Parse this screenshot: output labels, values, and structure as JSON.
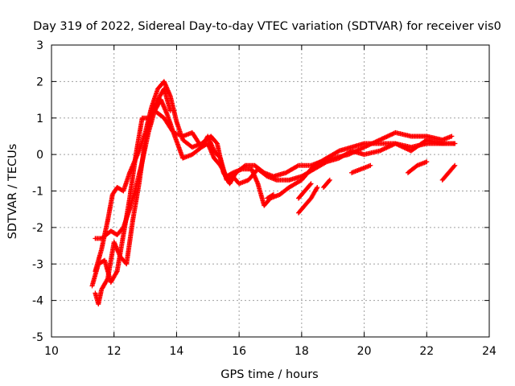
{
  "chart_data": {
    "type": "scatter",
    "title": "Day 319 of 2022, Sidereal Day-to-day VTEC variation (SDTVAR) for receiver vis0",
    "xlabel": "GPS time / hours",
    "ylabel": "SDTVAR / TECUs",
    "xlim": [
      10,
      24
    ],
    "ylim": [
      -5,
      3
    ],
    "xticks": [
      10,
      12,
      14,
      16,
      18,
      20,
      22,
      24
    ],
    "yticks": [
      -5,
      -4,
      -3,
      -2,
      -1,
      0,
      1,
      2,
      3
    ],
    "xtick_labels": [
      "10",
      "12",
      "14",
      "16",
      "18",
      "20",
      "22",
      "24"
    ],
    "ytick_labels": [
      "-5",
      "-4",
      "-3",
      "-2",
      "-1",
      "0",
      "1",
      "2",
      "3"
    ],
    "grid": true,
    "marker": "+",
    "marker_color": "#ff0000",
    "series": [
      {
        "name": "trace-1",
        "points": [
          [
            11.4,
            -3.2
          ],
          [
            11.6,
            -2.6
          ],
          [
            11.8,
            -1.8
          ],
          [
            11.95,
            -1.1
          ],
          [
            12.1,
            -0.9
          ],
          [
            12.3,
            -1.0
          ],
          [
            12.5,
            -0.5
          ],
          [
            12.8,
            0.1
          ],
          [
            13.0,
            0.6
          ],
          [
            13.2,
            1.3
          ],
          [
            13.4,
            1.8
          ],
          [
            13.6,
            2.0
          ],
          [
            13.8,
            1.6
          ],
          [
            14.0,
            0.9
          ],
          [
            14.2,
            0.4
          ],
          [
            14.5,
            0.2
          ],
          [
            14.8,
            0.3
          ],
          [
            15.1,
            0.5
          ],
          [
            15.3,
            0.3
          ],
          [
            15.5,
            -0.5
          ],
          [
            15.7,
            -0.8
          ],
          [
            15.9,
            -0.5
          ],
          [
            16.2,
            -0.3
          ],
          [
            16.5,
            -0.3
          ],
          [
            16.8,
            -0.5
          ],
          [
            17.1,
            -0.6
          ],
          [
            17.5,
            -0.5
          ],
          [
            17.9,
            -0.3
          ],
          [
            18.3,
            -0.3
          ],
          [
            18.6,
            -0.2
          ],
          [
            19.0,
            -0.1
          ],
          [
            19.5,
            0.0
          ],
          [
            20.0,
            0.2
          ],
          [
            20.5,
            0.4
          ],
          [
            21.0,
            0.6
          ],
          [
            21.5,
            0.5
          ],
          [
            22.0,
            0.5
          ],
          [
            22.5,
            0.4
          ],
          [
            22.8,
            0.5
          ]
        ]
      },
      {
        "name": "trace-2",
        "points": [
          [
            11.4,
            -2.3
          ],
          [
            11.6,
            -2.3
          ],
          [
            11.9,
            -2.1
          ],
          [
            12.1,
            -2.2
          ],
          [
            12.3,
            -2.0
          ],
          [
            12.5,
            -1.5
          ],
          [
            12.7,
            -0.9
          ],
          [
            12.9,
            -0.2
          ],
          [
            13.1,
            0.6
          ],
          [
            13.3,
            1.2
          ],
          [
            13.5,
            1.5
          ],
          [
            13.7,
            1.1
          ],
          [
            13.9,
            0.6
          ],
          [
            14.2,
            -0.1
          ],
          [
            14.5,
            0.0
          ],
          [
            14.8,
            0.2
          ],
          [
            15.0,
            0.3
          ],
          [
            15.2,
            -0.1
          ],
          [
            15.4,
            -0.3
          ],
          [
            15.6,
            -0.6
          ],
          [
            15.8,
            -0.5
          ],
          [
            16.1,
            -0.4
          ],
          [
            16.4,
            -0.4
          ],
          [
            16.6,
            -0.8
          ],
          [
            16.8,
            -1.4
          ],
          [
            17.0,
            -1.2
          ],
          [
            17.3,
            -1.1
          ],
          [
            17.6,
            -0.9
          ],
          [
            18.0,
            -0.7
          ],
          [
            18.4,
            -0.3
          ],
          [
            18.8,
            -0.1
          ],
          [
            19.2,
            0.1
          ],
          [
            19.6,
            0.2
          ],
          [
            20.0,
            0.3
          ],
          [
            20.5,
            0.3
          ],
          [
            21.0,
            0.3
          ],
          [
            21.5,
            0.2
          ],
          [
            22.0,
            0.3
          ],
          [
            22.5,
            0.3
          ],
          [
            22.9,
            0.3
          ]
        ]
      },
      {
        "name": "trace-3",
        "points": [
          [
            11.3,
            -3.6
          ],
          [
            11.5,
            -3.0
          ],
          [
            11.7,
            -2.9
          ],
          [
            11.9,
            -3.5
          ],
          [
            12.1,
            -3.2
          ],
          [
            12.3,
            -2.2
          ],
          [
            12.5,
            -1.2
          ],
          [
            12.7,
            0.0
          ],
          [
            12.9,
            1.0
          ],
          [
            13.1,
            1.0
          ],
          [
            13.3,
            1.2
          ],
          [
            13.6,
            1.0
          ],
          [
            13.9,
            0.6
          ],
          [
            14.2,
            0.5
          ],
          [
            14.5,
            0.6
          ],
          [
            14.8,
            0.2
          ],
          [
            15.0,
            0.5
          ],
          [
            15.2,
            0.1
          ],
          [
            15.4,
            -0.1
          ],
          [
            15.6,
            -0.7
          ],
          [
            15.8,
            -0.6
          ],
          [
            16.0,
            -0.8
          ],
          [
            16.3,
            -0.7
          ],
          [
            16.6,
            -0.4
          ],
          [
            16.9,
            -0.6
          ],
          [
            17.2,
            -0.7
          ],
          [
            17.6,
            -0.7
          ],
          [
            18.0,
            -0.6
          ],
          [
            18.4,
            -0.4
          ],
          [
            18.8,
            -0.2
          ],
          [
            19.2,
            -0.1
          ],
          [
            19.6,
            0.1
          ],
          [
            20.0,
            0.0
          ],
          [
            20.5,
            0.1
          ],
          [
            21.0,
            0.3
          ],
          [
            21.5,
            0.1
          ],
          [
            22.0,
            0.4
          ],
          [
            22.5,
            0.3
          ],
          [
            22.9,
            0.3
          ]
        ]
      },
      {
        "name": "trace-4",
        "points": [
          [
            11.4,
            -3.8
          ],
          [
            11.5,
            -4.1
          ],
          [
            11.6,
            -3.7
          ],
          [
            11.8,
            -3.4
          ],
          [
            12.0,
            -2.4
          ],
          [
            12.2,
            -2.8
          ],
          [
            12.4,
            -3.0
          ],
          [
            12.6,
            -1.8
          ],
          [
            12.8,
            -0.8
          ],
          [
            13.0,
            0.4
          ],
          [
            13.2,
            1.1
          ],
          [
            13.4,
            1.5
          ],
          [
            13.6,
            1.8
          ],
          [
            13.8,
            1.2
          ]
        ]
      },
      {
        "name": "trace-5",
        "points": [
          [
            16.9,
            -1.2
          ],
          [
            17.1,
            -1.1
          ]
        ]
      },
      {
        "name": "trace-6",
        "points": [
          [
            17.9,
            -1.2
          ],
          [
            18.1,
            -1.0
          ],
          [
            18.3,
            -0.8
          ]
        ]
      },
      {
        "name": "trace-7",
        "points": [
          [
            17.9,
            -1.6
          ],
          [
            18.1,
            -1.4
          ],
          [
            18.3,
            -1.2
          ],
          [
            18.5,
            -0.9
          ]
        ]
      },
      {
        "name": "trace-8",
        "points": [
          [
            18.7,
            -0.9
          ],
          [
            18.9,
            -0.7
          ]
        ]
      },
      {
        "name": "trace-9",
        "points": [
          [
            19.6,
            -0.5
          ],
          [
            19.9,
            -0.4
          ],
          [
            20.2,
            -0.3
          ]
        ]
      },
      {
        "name": "trace-10",
        "points": [
          [
            21.4,
            -0.5
          ],
          [
            21.7,
            -0.3
          ],
          [
            22.0,
            -0.2
          ]
        ]
      },
      {
        "name": "trace-11",
        "points": [
          [
            22.5,
            -0.7
          ],
          [
            22.7,
            -0.5
          ],
          [
            22.9,
            -0.3
          ]
        ]
      }
    ]
  }
}
